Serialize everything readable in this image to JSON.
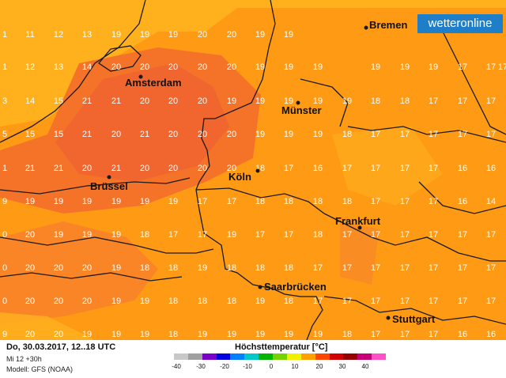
{
  "branding": {
    "logo_text": "wetteronline"
  },
  "footer": {
    "date_line": "Do, 30.03.2017, 12..18 UTC",
    "run_line": "Mi 12 +30h",
    "model_line": "Modell: GFS (NOAA)"
  },
  "legend": {
    "title": "Höchsttemperatur [°C]",
    "ticks": [
      "-40",
      "-30",
      "-20",
      "-10",
      "0",
      "10",
      "20",
      "30",
      "40"
    ],
    "colors": [
      "#c8c8c8",
      "#a0a0a0",
      "#7a00c8",
      "#0000e0",
      "#0080ff",
      "#00c8c8",
      "#00b400",
      "#78d200",
      "#f0f000",
      "#ffa000",
      "#ff4600",
      "#d20000",
      "#960000",
      "#c80078",
      "#ff50c8"
    ]
  },
  "cities": [
    {
      "name": "Bremen"
    },
    {
      "name": "Amsterdam"
    },
    {
      "name": "Münster"
    },
    {
      "name": "Köln"
    },
    {
      "name": "Brüssel"
    },
    {
      "name": "Frankfurt"
    },
    {
      "name": "Saarbrücken"
    },
    {
      "name": "Stuttgart"
    }
  ],
  "temperature_grid": [
    [
      "1",
      "11",
      "12",
      "13",
      "19",
      "19",
      "19",
      "20",
      "20",
      "19",
      "19",
      "",
      "",
      "",
      "",
      "",
      "",
      "",
      ""
    ],
    [
      "1",
      "12",
      "13",
      "14",
      "20",
      "20",
      "20",
      "20",
      "20",
      "19",
      "19",
      "19",
      "",
      "19",
      "19",
      "19",
      "17",
      "17",
      "17"
    ],
    [
      "3",
      "14",
      "15",
      "21",
      "21",
      "20",
      "20",
      "20",
      "19",
      "19",
      "19",
      "19",
      "19",
      "18",
      "18",
      "17",
      "17",
      "17",
      ""
    ],
    [
      "5",
      "15",
      "15",
      "21",
      "20",
      "21",
      "20",
      "20",
      "20",
      "19",
      "19",
      "19",
      "18",
      "17",
      "17",
      "17",
      "17",
      "17",
      ""
    ],
    [
      "1",
      "21",
      "21",
      "20",
      "21",
      "20",
      "20",
      "20",
      "20",
      "18",
      "17",
      "16",
      "17",
      "17",
      "17",
      "17",
      "16",
      "16",
      ""
    ],
    [
      "9",
      "19",
      "19",
      "19",
      "19",
      "19",
      "19",
      "17",
      "17",
      "18",
      "18",
      "18",
      "18",
      "17",
      "17",
      "17",
      "16",
      "14",
      ""
    ],
    [
      "0",
      "20",
      "19",
      "19",
      "19",
      "18",
      "17",
      "17",
      "19",
      "17",
      "17",
      "18",
      "17",
      "17",
      "17",
      "17",
      "17",
      "17",
      ""
    ],
    [
      "0",
      "20",
      "20",
      "20",
      "19",
      "18",
      "18",
      "19",
      "18",
      "18",
      "18",
      "17",
      "17",
      "17",
      "17",
      "17",
      "17",
      "17",
      ""
    ],
    [
      "0",
      "20",
      "20",
      "20",
      "19",
      "19",
      "18",
      "18",
      "18",
      "19",
      "18",
      "17",
      "17",
      "17",
      "17",
      "17",
      "17",
      "17",
      ""
    ],
    [
      "9",
      "20",
      "20",
      "19",
      "19",
      "19",
      "18",
      "19",
      "19",
      "19",
      "19",
      "19",
      "18",
      "17",
      "17",
      "17",
      "16",
      "16",
      ""
    ],
    [
      "0",
      "20",
      "20",
      "20",
      "20",
      "20",
      "19",
      "19",
      "19",
      "19",
      "19",
      "18",
      "17",
      "17",
      "17",
      "17",
      "16",
      "16",
      ""
    ]
  ]
}
